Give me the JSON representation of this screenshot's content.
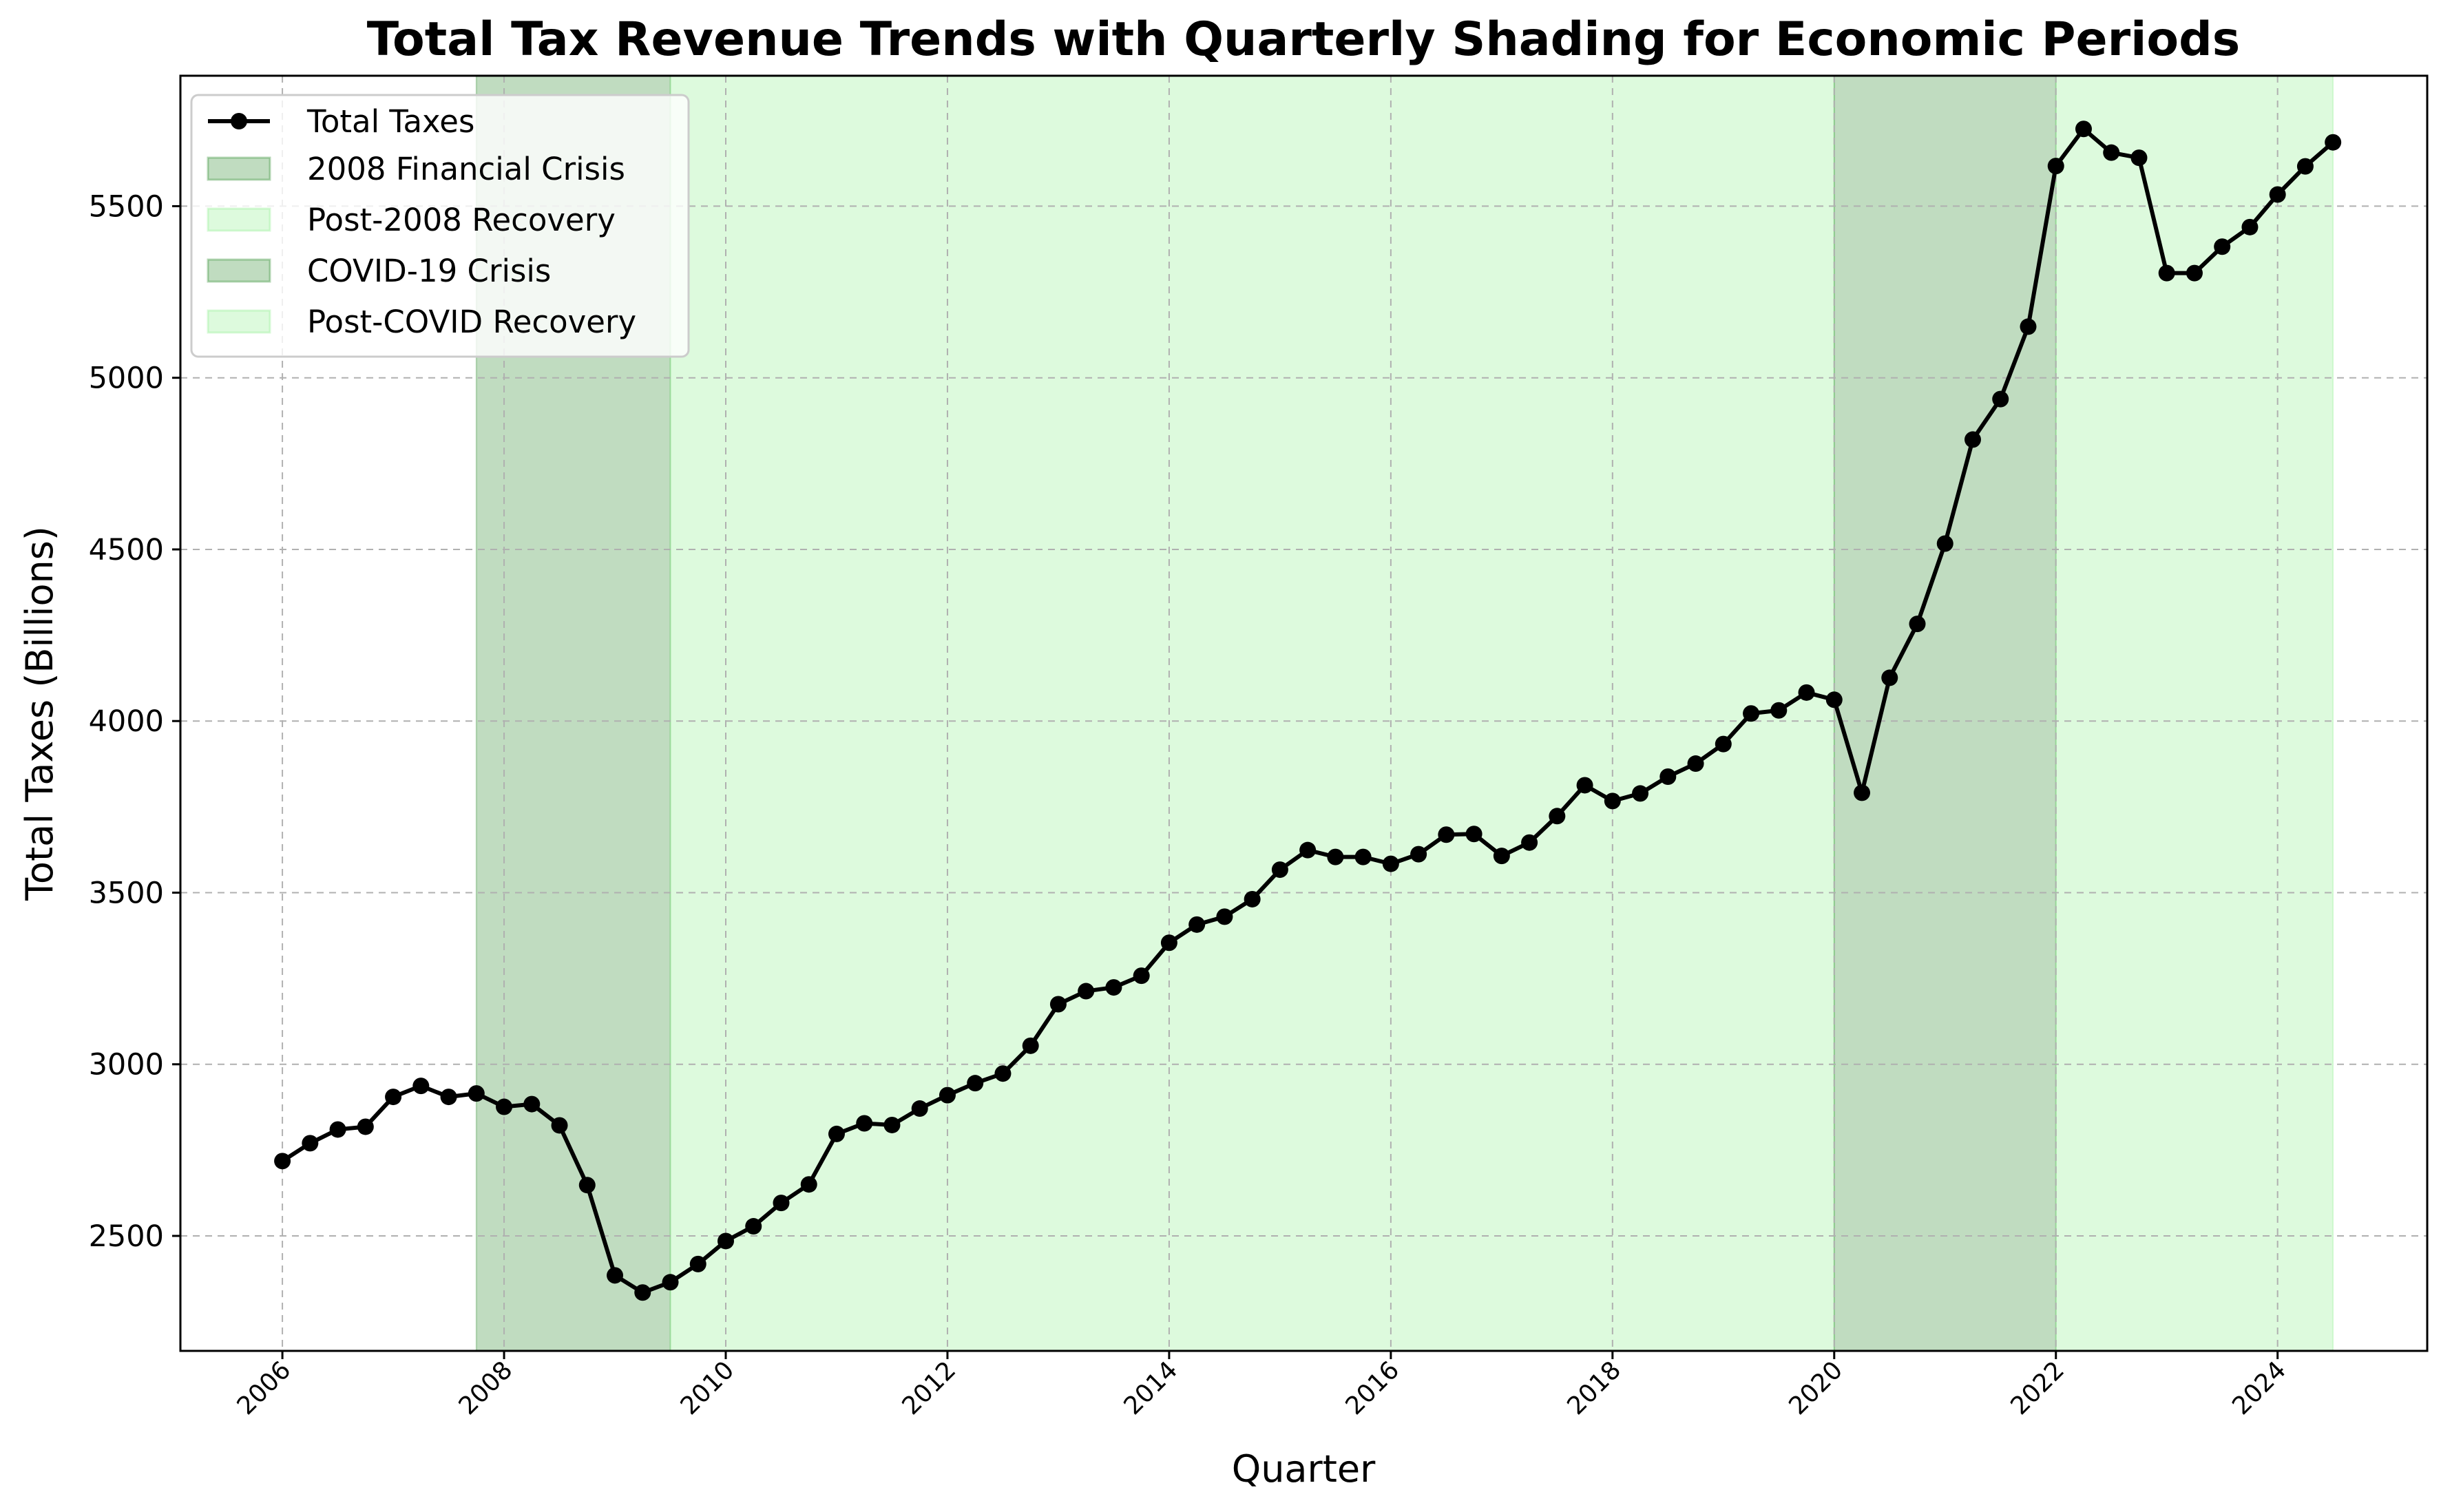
{
  "chart_data": {
    "type": "line",
    "title": "Total Tax Revenue Trends with Quarterly Shading for Economic Periods",
    "xlabel": "Quarter",
    "ylabel": "Total Taxes (Billions)",
    "x_ticks": [
      "2006",
      "2008",
      "2010",
      "2012",
      "2014",
      "2016",
      "2018",
      "2020",
      "2022",
      "2024"
    ],
    "y_ticks": [
      "2500",
      "3000",
      "3500",
      "4000",
      "4500",
      "5000",
      "5500"
    ],
    "xlim": [
      2005.08,
      2025.35
    ],
    "ylim": [
      2165,
      5880
    ],
    "grid": true,
    "legend_position": "top-left",
    "series": [
      {
        "name": "Total Taxes",
        "color": "#000000",
        "marker": "circle",
        "x": [
          2006.0,
          2006.25,
          2006.5,
          2006.75,
          2007.0,
          2007.25,
          2007.5,
          2007.75,
          2008.0,
          2008.25,
          2008.5,
          2008.75,
          2009.0,
          2009.25,
          2009.5,
          2009.75,
          2010.0,
          2010.25,
          2010.5,
          2010.75,
          2011.0,
          2011.25,
          2011.5,
          2011.75,
          2012.0,
          2012.25,
          2012.5,
          2012.75,
          2013.0,
          2013.25,
          2013.5,
          2013.75,
          2014.0,
          2014.25,
          2014.5,
          2014.75,
          2015.0,
          2015.25,
          2015.5,
          2015.75,
          2016.0,
          2016.25,
          2016.5,
          2016.75,
          2017.0,
          2017.25,
          2017.5,
          2017.75,
          2018.0,
          2018.25,
          2018.5,
          2018.75,
          2019.0,
          2019.25,
          2019.5,
          2019.75,
          2020.0,
          2020.25,
          2020.5,
          2020.75,
          2021.0,
          2021.25,
          2021.5,
          2021.75,
          2022.0,
          2022.25,
          2022.5,
          2022.75,
          2023.0,
          2023.25,
          2023.5,
          2023.75,
          2024.0,
          2024.25,
          2024.5
        ],
        "values": [
          2718,
          2770,
          2810,
          2818,
          2905,
          2937,
          2905,
          2915,
          2876,
          2884,
          2822,
          2648,
          2385,
          2335,
          2365,
          2418,
          2485,
          2528,
          2596,
          2650,
          2797,
          2828,
          2823,
          2871,
          2910,
          2945,
          2973,
          3054,
          3175,
          3213,
          3224,
          3258,
          3354,
          3407,
          3430,
          3481,
          3567,
          3624,
          3604,
          3604,
          3584,
          3612,
          3669,
          3671,
          3607,
          3646,
          3723,
          3813,
          3767,
          3789,
          3838,
          3876,
          3933,
          4022,
          4031,
          4083,
          4062,
          3791,
          4126,
          4283,
          4517,
          4820,
          4938,
          5149,
          5617,
          5725,
          5656,
          5641,
          5305,
          5305,
          5382,
          5439,
          5534,
          5616,
          5686
        ]
      }
    ],
    "shaded_periods": [
      {
        "name": "2008 Financial Crisis",
        "start": 2007.75,
        "end": 2009.5,
        "color": "#2e8b2e",
        "opacity": 0.3
      },
      {
        "name": "Post-2008 Recovery",
        "start": 2009.5,
        "end": 2020.0,
        "color": "#90ee90",
        "opacity": 0.3
      },
      {
        "name": "COVID-19 Crisis",
        "start": 2020.0,
        "end": 2022.0,
        "color": "#2e8b2e",
        "opacity": 0.3
      },
      {
        "name": "Post-COVID Recovery",
        "start": 2022.0,
        "end": 2024.5,
        "color": "#90ee90",
        "opacity": 0.3
      }
    ]
  }
}
